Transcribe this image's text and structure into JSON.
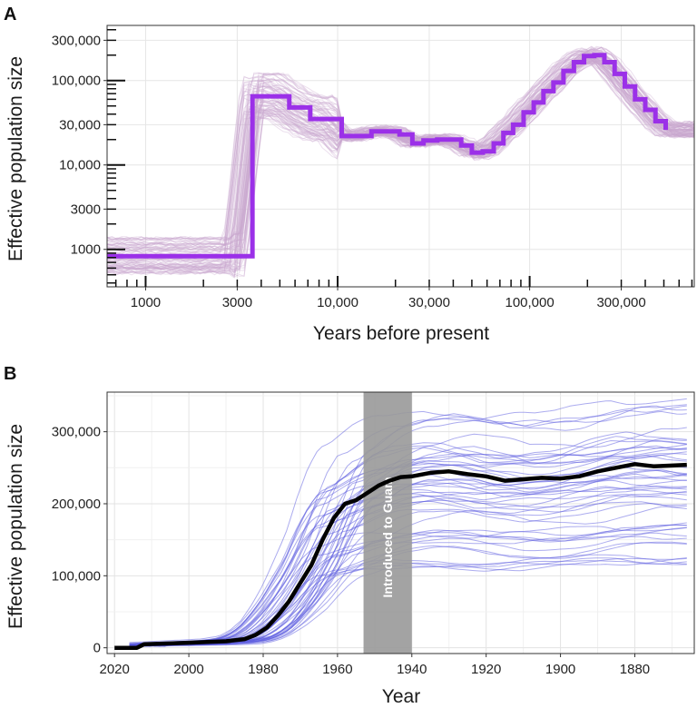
{
  "chart_data": [
    {
      "panel": "A",
      "type": "line",
      "xlabel": "Years before present",
      "ylabel": "Effective population size",
      "x_scale": "log",
      "y_scale": "log",
      "xlim": [
        630,
        720000
      ],
      "ylim": [
        360,
        450000
      ],
      "x_ticks": [
        {
          "value": 1000,
          "label": "1000"
        },
        {
          "value": 3000,
          "label": "3000"
        },
        {
          "value": 10000,
          "label": "10,000"
        },
        {
          "value": 30000,
          "label": "30,000"
        },
        {
          "value": 100000,
          "label": "100,000"
        },
        {
          "value": 300000,
          "label": "300,000"
        }
      ],
      "y_ticks": [
        {
          "value": 1000,
          "label": "1000"
        },
        {
          "value": 3000,
          "label": "3000"
        },
        {
          "value": 10000,
          "label": "10,000"
        },
        {
          "value": 30000,
          "label": "30,000"
        },
        {
          "value": 100000,
          "label": "100,000"
        },
        {
          "value": 300000,
          "label": "300,000"
        }
      ],
      "grid": true,
      "main_color": "#9b30e8",
      "replicate_color": "#c9a6cf",
      "series": [
        {
          "x": [
            630,
            2900,
            3600,
            4700,
            5600,
            7200,
            8700,
            10500,
            12500,
            15000,
            18000,
            21000,
            24500,
            28000,
            33000,
            38000,
            44000,
            50000,
            57000,
            65000,
            73000,
            82000,
            93000,
            105000,
            118000,
            133000,
            150000,
            170000,
            192000,
            217000,
            245000,
            277000,
            313000,
            354000,
            400000,
            452000,
            511000
          ],
          "y": [
            830,
            830,
            65000,
            65000,
            48000,
            35000,
            35000,
            22000,
            22000,
            25000,
            25000,
            23000,
            18000,
            19500,
            20000,
            20000,
            17000,
            14000,
            14500,
            18000,
            24000,
            30000,
            42000,
            55000,
            75000,
            95000,
            130000,
            165000,
            195000,
            200000,
            165000,
            120000,
            85000,
            60000,
            45000,
            33000,
            26000
          ]
        }
      ]
    },
    {
      "panel": "B",
      "type": "line",
      "xlabel": "Year",
      "ylabel": "Effective population size",
      "x_reversed": true,
      "xlim": [
        2022,
        1864
      ],
      "ylim": [
        -8000,
        355000
      ],
      "x_ticks": [
        2020,
        2000,
        1980,
        1960,
        1940,
        1920,
        1900,
        1880
      ],
      "y_ticks": [
        {
          "value": 0,
          "label": "0"
        },
        {
          "value": 100000,
          "label": "100,000"
        },
        {
          "value": 200000,
          "label": "200,000"
        },
        {
          "value": 300000,
          "label": "300,000"
        }
      ],
      "grid": true,
      "main_color": "#000000",
      "replicate_color": "#5a5ae0",
      "band": {
        "from": 1953,
        "to": 1940,
        "label": "Introduced to Guam",
        "color": "#999999"
      },
      "series": [
        {
          "x": [
            2020,
            2014,
            2012,
            2005,
            2000,
            1995,
            1990,
            1985,
            1982,
            1979,
            1976,
            1973,
            1970,
            1967,
            1964,
            1961,
            1958,
            1955,
            1952,
            1949,
            1946,
            1943,
            1940,
            1935,
            1930,
            1925,
            1920,
            1915,
            1910,
            1905,
            1900,
            1895,
            1890,
            1885,
            1880,
            1875,
            1870,
            1866
          ],
          "y": [
            0,
            0,
            5000,
            6000,
            7000,
            8000,
            9000,
            12000,
            18000,
            28000,
            45000,
            65000,
            90000,
            115000,
            150000,
            180000,
            200000,
            205000,
            215000,
            225000,
            232000,
            237000,
            238000,
            243000,
            245000,
            241000,
            238000,
            232000,
            234000,
            236000,
            235000,
            238000,
            245000,
            250000,
            255000,
            252000,
            253000,
            254000
          ]
        }
      ]
    }
  ]
}
